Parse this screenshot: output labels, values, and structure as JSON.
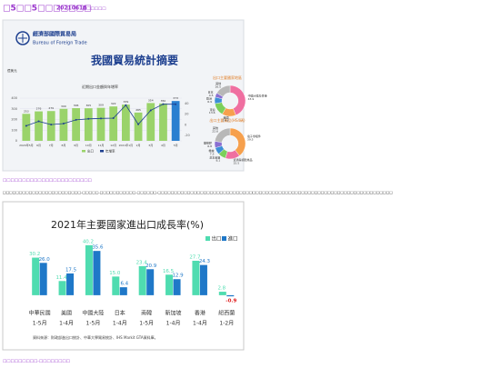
{
  "header": {
    "title": "□5□□5□□□□□□□",
    "date": "20210618",
    "tag": "□□□□□□"
  },
  "chart_data": [
    {
      "type": "bar",
      "org": "經濟部國際貿易局",
      "org_en": "Bureau of Foreign Trade",
      "title": "我國貿易統計摘要",
      "subtitle": "近期出口金額與年增率",
      "y_label": "億美元",
      "categories": [
        "2020年5月",
        "6月",
        "7月",
        "8月",
        "9月",
        "10月",
        "11月",
        "12月",
        "2021年1月",
        "2月",
        "3月",
        "4月",
        "5月"
      ],
      "series": [
        {
          "name": "出口",
          "color": "#9ad36a",
          "colors": [
            "#9ad36a",
            "#9ad36a",
            "#9ad36a",
            "#9ad36a",
            "#9ad36a",
            "#9ad36a",
            "#9ad36a",
            "#9ad36a",
            "#9ad36a",
            "#9ad36a",
            "#9ad36a",
            "#9ad36a",
            "#2a7fd0"
          ],
          "values": [
            253,
            276,
            279,
            300,
            306,
            305,
            309,
            322,
            339,
            265,
            354,
            350,
            373
          ]
        },
        {
          "name": "年增率",
          "type": "line",
          "axis": "y2",
          "color": "#1d3f8f",
          "values": [
            -2.0,
            6.5,
            0.4,
            2.3,
            9.4,
            11.2,
            12.0,
            12.5,
            36.8,
            1.0,
            27.1,
            38.7,
            38.6
          ]
        }
      ],
      "ylim": [
        0,
        400
      ],
      "yticks": [
        0,
        100,
        200,
        300,
        400
      ],
      "y2lim": [
        -30,
        50
      ],
      "y2ticks": [
        -20,
        0,
        20,
        40
      ]
    },
    {
      "type": "pie",
      "title": "出口主要國家地區",
      "categories": [
        "中國大陸及香港",
        "美國",
        "東協",
        "歐洲",
        "日本",
        "其他"
      ],
      "colors": [
        "#ef6fa0",
        "#f6a04d",
        "#7ccf5a",
        "#3d8fd6",
        "#8a6fd1",
        "#b8b8b8"
      ],
      "values": [
        43.9,
        14.6,
        13.6,
        6.9,
        4.5,
        16.5
      ]
    },
    {
      "type": "pie",
      "title": "出口主要貨品(HS4碼)",
      "categories": [
        "電子零組件",
        "資通與視聽產品",
        "基本金屬",
        "機械",
        "塑橡膠",
        "其他"
      ],
      "colors": [
        "#f6a04d",
        "#ef6fa0",
        "#7ccf5a",
        "#3d8fd6",
        "#8a6fd1",
        "#b8b8b8"
      ],
      "values": [
        39.5,
        15.5,
        8.1,
        7.5,
        6.8,
        22.6
      ]
    },
    {
      "type": "groupbar",
      "title": "2021年主要國家進出口成長率(%)",
      "categories": [
        "中華民國",
        "美國",
        "中國大陸",
        "日本",
        "南韓",
        "新加坡",
        "香港",
        "紐西蘭"
      ],
      "periods": [
        "1-5月",
        "1-4月",
        "1-5月",
        "1-4月",
        "1-5月",
        "1-4月",
        "1-4月",
        "1-2月"
      ],
      "series": [
        {
          "name": "出口",
          "color": "#4fdcb0",
          "values": [
            30.2,
            11.4,
            40.2,
            15.0,
            23.4,
            16.5,
            27.7,
            2.8
          ],
          "value_labels": [
            "30.2",
            "11.4",
            "40.2",
            "15.0",
            "23.4",
            "16.5",
            "27.7",
            "2.8"
          ]
        },
        {
          "name": "進口",
          "color": "#1f78c8",
          "values": [
            26.0,
            17.5,
            35.6,
            6.4,
            20.9,
            12.9,
            24.3,
            -0.9
          ],
          "value_labels": [
            "26.0",
            "17.5",
            "35.6",
            "6.4",
            "20.9",
            "12.9",
            "24.3",
            "-0.9"
          ]
        }
      ],
      "negative_color": "#e02020",
      "ylim": [
        -3,
        42
      ],
      "source": "資料來源：財政部進出口統計、中華大學貿易統計、IHS Markit GTA資料庫。"
    }
  ],
  "caption": "□□□□□□□□□□□□□□□□□□□□□□□",
  "body": "□□□□□□□□□□□□□□□□□□□□□□□□-□□□□□-□□□□□□□□□□□-□□□□□□-□□□□□□□□□□□□□□□□□□□□□□□□□□□□□□□□□□□□□□□□□□□□□□□□□□□□□□□□□□□□□□□□□□□□□□□□",
  "footer": "□□□□□□□□□-□□□□□□□□"
}
